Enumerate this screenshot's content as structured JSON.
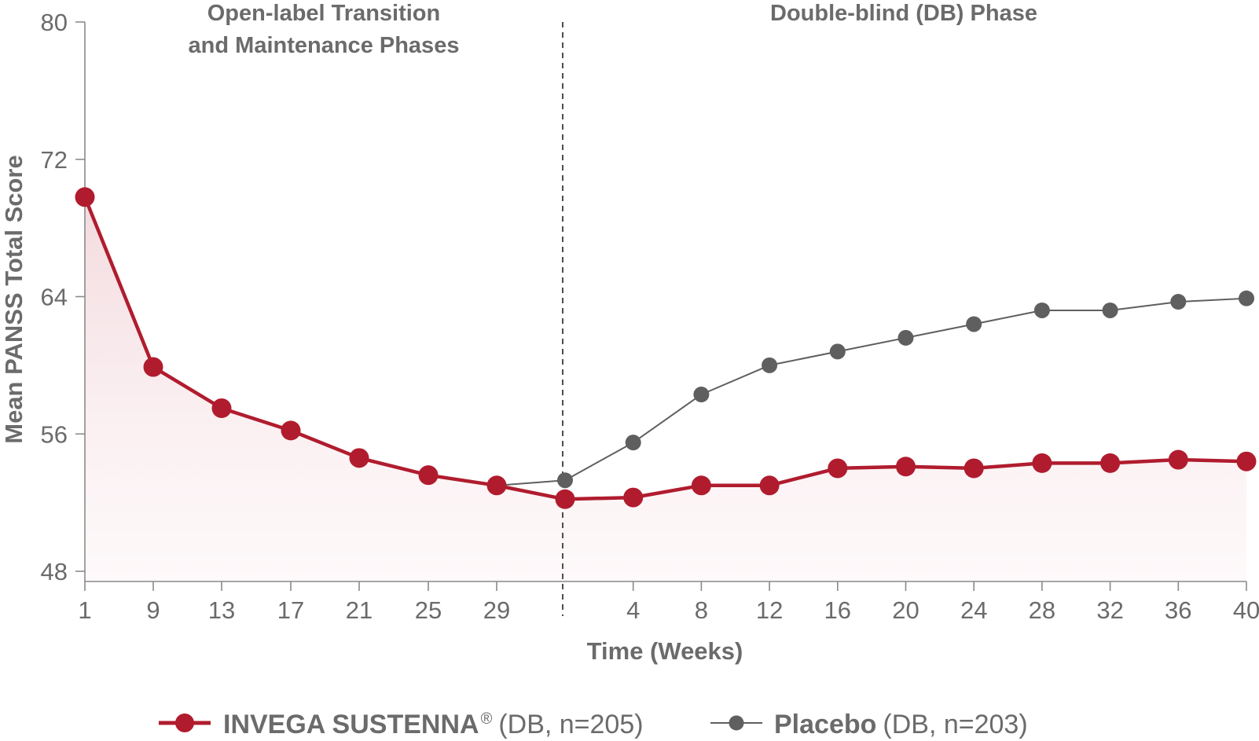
{
  "chart_data": {
    "type": "line",
    "ylabel": "Mean PANSS Total Score",
    "xlabel": "Time (Weeks)",
    "ylim": [
      48,
      80
    ],
    "yticks": [
      "48",
      "56",
      "64",
      "72",
      "80"
    ],
    "x_tick_labels": [
      "1",
      "9",
      "13",
      "17",
      "21",
      "25",
      "29",
      "4",
      "8",
      "12",
      "16",
      "20",
      "24",
      "28",
      "32",
      "36",
      "40"
    ],
    "phases": [
      {
        "label_line1": "Open-label Transition",
        "label_line2": "and Maintenance Phases"
      },
      {
        "label_line1": "Double-blind (DB) Phase",
        "label_line2": ""
      }
    ],
    "grid": false,
    "legend_position": "bottom",
    "series": [
      {
        "name": "INVEGA SUSTENNA",
        "legend_suffix": "(DB, n=205)",
        "color": "#b01c2e",
        "fill_area": true,
        "points": [
          {
            "phase": "open-label",
            "week": 1,
            "value": 69.8
          },
          {
            "phase": "open-label",
            "week": 9,
            "value": 59.9
          },
          {
            "phase": "open-label",
            "week": 13,
            "value": 57.5
          },
          {
            "phase": "open-label",
            "week": 17,
            "value": 56.2
          },
          {
            "phase": "open-label",
            "week": 21,
            "value": 54.6
          },
          {
            "phase": "open-label",
            "week": 25,
            "value": 53.6
          },
          {
            "phase": "open-label",
            "week": 29,
            "value": 53.0
          },
          {
            "phase": "double-blind",
            "week": 0,
            "value": 52.2
          },
          {
            "phase": "double-blind",
            "week": 4,
            "value": 52.3
          },
          {
            "phase": "double-blind",
            "week": 8,
            "value": 53.0
          },
          {
            "phase": "double-blind",
            "week": 12,
            "value": 53.0
          },
          {
            "phase": "double-blind",
            "week": 16,
            "value": 54.0
          },
          {
            "phase": "double-blind",
            "week": 20,
            "value": 54.1
          },
          {
            "phase": "double-blind",
            "week": 24,
            "value": 54.0
          },
          {
            "phase": "double-blind",
            "week": 28,
            "value": 54.3
          },
          {
            "phase": "double-blind",
            "week": 32,
            "value": 54.3
          },
          {
            "phase": "double-blind",
            "week": 36,
            "value": 54.5
          },
          {
            "phase": "double-blind",
            "week": 40,
            "value": 54.4
          }
        ]
      },
      {
        "name": "Placebo",
        "legend_suffix": "(DB, n=203)",
        "color": "#5f5f5f",
        "fill_area": false,
        "points": [
          {
            "phase": "open-label",
            "week": 29,
            "value": 53.0
          },
          {
            "phase": "double-blind",
            "week": 0,
            "value": 53.3
          },
          {
            "phase": "double-blind",
            "week": 4,
            "value": 55.5
          },
          {
            "phase": "double-blind",
            "week": 8,
            "value": 58.3
          },
          {
            "phase": "double-blind",
            "week": 12,
            "value": 60.0
          },
          {
            "phase": "double-blind",
            "week": 16,
            "value": 60.8
          },
          {
            "phase": "double-blind",
            "week": 20,
            "value": 61.6
          },
          {
            "phase": "double-blind",
            "week": 24,
            "value": 62.4
          },
          {
            "phase": "double-blind",
            "week": 28,
            "value": 63.2
          },
          {
            "phase": "double-blind",
            "week": 32,
            "value": 63.2
          },
          {
            "phase": "double-blind",
            "week": 36,
            "value": 63.7
          },
          {
            "phase": "double-blind",
            "week": 40,
            "value": 63.9
          }
        ]
      }
    ]
  }
}
